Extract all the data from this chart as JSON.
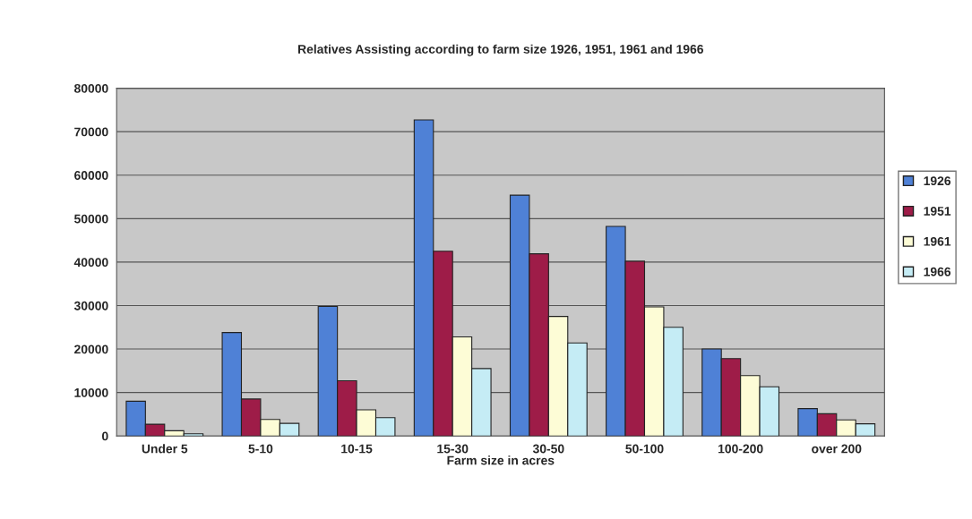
{
  "chart_data": {
    "type": "bar",
    "title": "Relatives Assisting according to farm size 1926, 1951, 1961 and 1966",
    "xlabel": "Farm size in acres",
    "categories": [
      "Under 5",
      "5-10",
      "10-15",
      "15-30",
      "30-50",
      "50-100",
      "100-200",
      "over 200"
    ],
    "series": [
      {
        "name": "1926",
        "color": "#4f81d6",
        "values": [
          8000,
          23800,
          29800,
          72700,
          55400,
          48200,
          20000,
          6300
        ]
      },
      {
        "name": "1951",
        "color": "#9e1c48",
        "values": [
          2700,
          8500,
          12700,
          42500,
          41900,
          40200,
          17800,
          5100
        ]
      },
      {
        "name": "1961",
        "color": "#fdfcd6",
        "values": [
          1200,
          3800,
          6000,
          22800,
          27500,
          29700,
          13900,
          3700
        ]
      },
      {
        "name": "1966",
        "color": "#c5ecf5",
        "values": [
          500,
          2900,
          4200,
          15500,
          21400,
          25000,
          11300,
          2800
        ]
      }
    ],
    "ylim": [
      0,
      80000
    ],
    "yticks": [
      0,
      10000,
      20000,
      30000,
      40000,
      50000,
      60000,
      70000,
      80000
    ],
    "grid": "y",
    "legend": "right"
  }
}
